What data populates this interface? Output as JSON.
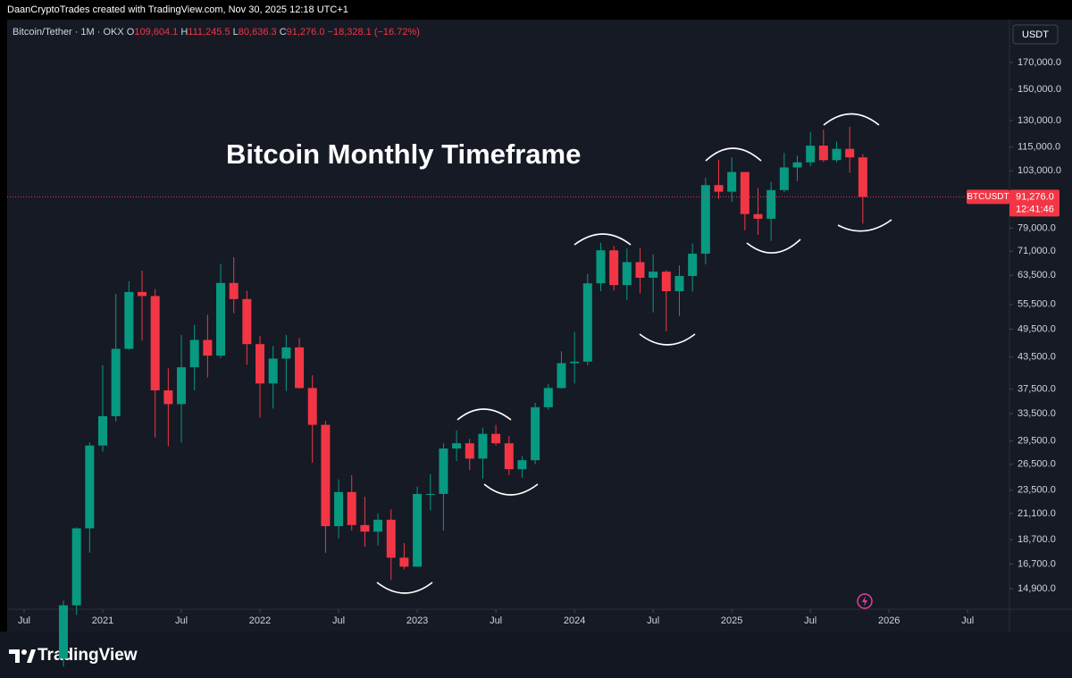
{
  "header": {
    "credit": "DaanCryptoTrades created with TradingView.com, Nov 30, 2025 12:18 UTC+1",
    "symbol": "Bitcoin/Tether · 1M · OKX",
    "ohlc": [
      {
        "key": "O",
        "value": "109,604.1"
      },
      {
        "key": "H",
        "value": "111,245.5"
      },
      {
        "key": "L",
        "value": "80,636.3"
      },
      {
        "key": "C",
        "value": "91,276.0"
      }
    ],
    "change": "−18,328.1 (−16.72%)",
    "currency": "USDT"
  },
  "chart_data": {
    "type": "candlestick",
    "title": "Bitcoin Monthly Timeframe",
    "log_scale": true,
    "grid": false,
    "up_color": "#089981",
    "down_color": "#f23645",
    "x": [
      "2020-10",
      "2020-11",
      "2020-12",
      "2021-01",
      "2021-02",
      "2021-03",
      "2021-04",
      "2021-05",
      "2021-06",
      "2021-07",
      "2021-08",
      "2021-09",
      "2021-10",
      "2021-11",
      "2021-12",
      "2022-01",
      "2022-02",
      "2022-03",
      "2022-04",
      "2022-05",
      "2022-06",
      "2022-07",
      "2022-08",
      "2022-09",
      "2022-10",
      "2022-11",
      "2022-12",
      "2023-01",
      "2023-02",
      "2023-03",
      "2023-04",
      "2023-05",
      "2023-06",
      "2023-07",
      "2023-08",
      "2023-09",
      "2023-10",
      "2023-11",
      "2023-12",
      "2024-01",
      "2024-02",
      "2024-03",
      "2024-04",
      "2024-05",
      "2024-06",
      "2024-07",
      "2024-08",
      "2024-09",
      "2024-10",
      "2024-11",
      "2024-12",
      "2025-01",
      "2025-02",
      "2025-03",
      "2025-04",
      "2025-05",
      "2025-06",
      "2025-07",
      "2025-08",
      "2025-09",
      "2025-10",
      "2025-11"
    ],
    "open": [
      10780,
      13800,
      19700,
      28900,
      33100,
      45200,
      58800,
      57700,
      37300,
      35000,
      41500,
      47100,
      43800,
      61300,
      56900,
      46200,
      38500,
      43200,
      45500,
      37700,
      31800,
      19900,
      23300,
      20000,
      19400,
      20500,
      17200,
      16500,
      23100,
      23100,
      28500,
      29200,
      27200,
      30500,
      29200,
      25900,
      27000,
      34500,
      37700,
      42300,
      42600,
      61200,
      71300,
      60700,
      67500,
      62800,
      64600,
      59000,
      63300,
      70200,
      96400,
      93500,
      102400,
      84300,
      82500,
      94200,
      104600,
      107100,
      115700,
      108200,
      114000,
      109604.1
    ],
    "high": [
      14100,
      19800,
      29300,
      41900,
      58300,
      61800,
      64900,
      59600,
      41300,
      48200,
      50500,
      52900,
      67000,
      69000,
      59100,
      48000,
      45800,
      48200,
      47500,
      40000,
      32400,
      24700,
      25200,
      22800,
      21100,
      21500,
      18400,
      23900,
      25300,
      29200,
      31000,
      29800,
      31400,
      31800,
      30200,
      27500,
      35200,
      38400,
      44700,
      48900,
      63900,
      73800,
      72800,
      71900,
      72000,
      70000,
      65100,
      66500,
      73600,
      99800,
      108400,
      109600,
      102500,
      95000,
      97900,
      111900,
      110500,
      123200,
      124500,
      117900,
      126200,
      111245.5
    ],
    "low": [
      10400,
      13200,
      17600,
      28100,
      32300,
      45000,
      47000,
      30000,
      28800,
      29300,
      37300,
      39600,
      43300,
      53300,
      42000,
      32900,
      34300,
      37200,
      37600,
      26700,
      17600,
      18800,
      19500,
      18100,
      18200,
      15500,
      16300,
      16500,
      21400,
      19500,
      26900,
      25800,
      24800,
      28900,
      25200,
      24900,
      26500,
      34100,
      37600,
      38500,
      41900,
      59000,
      59200,
      56600,
      58400,
      53500,
      49000,
      52600,
      58900,
      66800,
      90500,
      89200,
      78200,
      76600,
      74500,
      93300,
      98200,
      105100,
      107300,
      107200,
      102000,
      80636.3
    ],
    "close": [
      13800,
      19700,
      28900,
      33100,
      45200,
      58800,
      57700,
      37300,
      35000,
      41500,
      47100,
      43800,
      61300,
      56900,
      46200,
      38500,
      43200,
      45500,
      37700,
      31800,
      19900,
      23300,
      20000,
      19400,
      20500,
      17200,
      16500,
      23100,
      23100,
      28500,
      29200,
      27200,
      30500,
      29200,
      25900,
      27000,
      34500,
      37700,
      42300,
      42600,
      61200,
      71300,
      60700,
      67500,
      62800,
      64600,
      59000,
      63300,
      70200,
      96400,
      93500,
      102400,
      84300,
      82500,
      94200,
      104600,
      107100,
      115700,
      108200,
      114000,
      109600,
      91276.0
    ],
    "ylim": [
      13440,
      200500
    ],
    "yticks": [
      {
        "value": 14900,
        "label": "14,900.0"
      },
      {
        "value": 16700,
        "label": "16,700.0"
      },
      {
        "value": 18700,
        "label": "18,700.0"
      },
      {
        "value": 21100,
        "label": "21,100.0"
      },
      {
        "value": 23500,
        "label": "23,500.0"
      },
      {
        "value": 26500,
        "label": "26,500.0"
      },
      {
        "value": 29500,
        "label": "29,500.0"
      },
      {
        "value": 33500,
        "label": "33,500.0"
      },
      {
        "value": 37500,
        "label": "37,500.0"
      },
      {
        "value": 43500,
        "label": "43,500.0"
      },
      {
        "value": 49500,
        "label": "49,500.0"
      },
      {
        "value": 55500,
        "label": "55,500.0"
      },
      {
        "value": 63500,
        "label": "63,500.0"
      },
      {
        "value": 71000,
        "label": "71,000.0"
      },
      {
        "value": 79000,
        "label": "79,000.0"
      },
      {
        "value": 103000,
        "label": "103,000.0"
      },
      {
        "value": 115000,
        "label": "115,000.0"
      },
      {
        "value": 130000,
        "label": "130,000.0"
      },
      {
        "value": 150000,
        "label": "150,000.0"
      },
      {
        "value": 170000,
        "label": "170,000.0"
      }
    ],
    "xticks": [
      {
        "value": "2020-07",
        "label": "Jul"
      },
      {
        "value": "2021-01",
        "label": "2021"
      },
      {
        "value": "2021-07",
        "label": "Jul"
      },
      {
        "value": "2022-01",
        "label": "2022"
      },
      {
        "value": "2022-07",
        "label": "Jul"
      },
      {
        "value": "2023-01",
        "label": "2023"
      },
      {
        "value": "2023-07",
        "label": "Jul"
      },
      {
        "value": "2024-01",
        "label": "2024"
      },
      {
        "value": "2024-07",
        "label": "Jul"
      },
      {
        "value": "2025-01",
        "label": "2025"
      },
      {
        "value": "2025-07",
        "label": "Jul"
      },
      {
        "value": "2026-01",
        "label": "2026"
      },
      {
        "value": "2026-07",
        "label": "Jul"
      }
    ],
    "last_price": {
      "symbol": "BTCUSDT",
      "value": 91276.0,
      "label": "91,276.0",
      "countdown": "12:41:46"
    }
  },
  "footer": {
    "brand": "TradingView"
  }
}
